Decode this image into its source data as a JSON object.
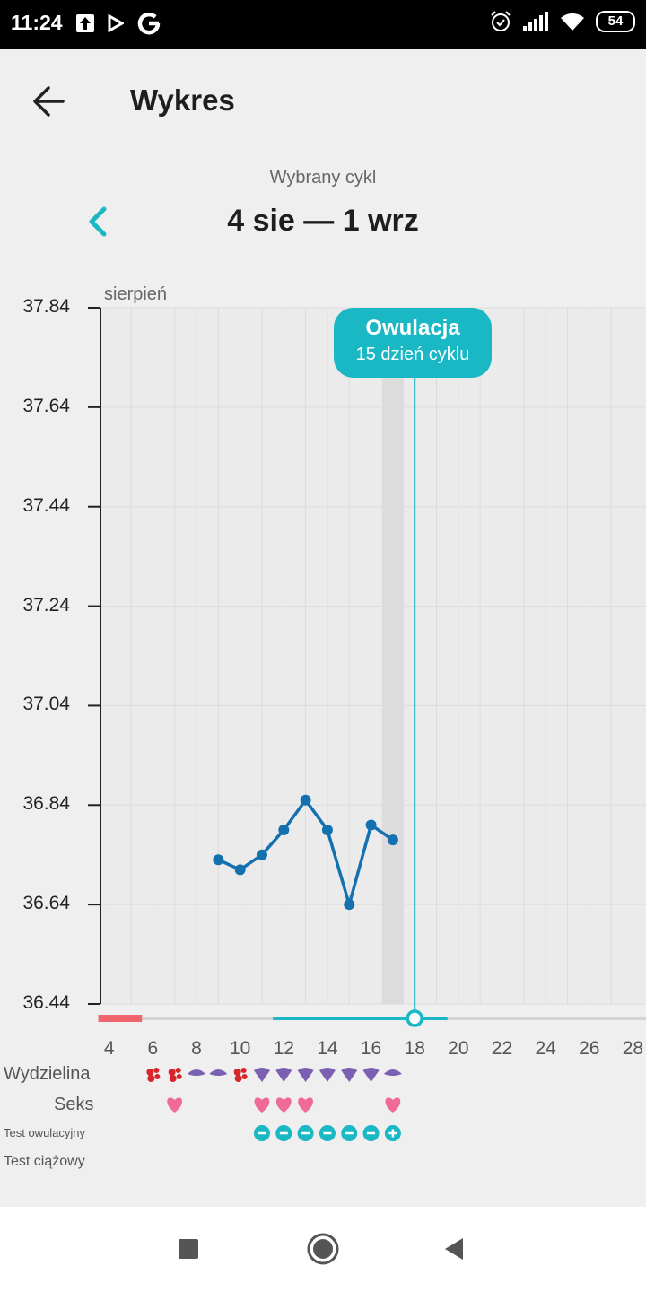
{
  "status_bar": {
    "time": "11:24",
    "battery": "54",
    "icons_left": [
      "upload-icon",
      "play-store-icon",
      "google-icon"
    ],
    "icons_right": [
      "alarm-icon",
      "signal-icon",
      "wifi-icon",
      "battery-icon"
    ]
  },
  "app_bar": {
    "title": "Wykres",
    "back_icon": "arrow-left-icon"
  },
  "cycle": {
    "caption": "Wybrany cykl",
    "range": "4 sie — 1 wrz",
    "prev_icon": "chevron-left-icon"
  },
  "colors": {
    "accent": "#1ab7c5",
    "line": "#1471b0",
    "period": "#f0656d",
    "discharge_purple": "#7a5fb2",
    "discharge_red": "#d8242b",
    "heart": "#ef6b96",
    "grid": "#dcdcdc"
  },
  "chart_data": {
    "type": "line",
    "month_label": "sierpień",
    "y_ticks": [
      "37.84",
      "37.64",
      "37.44",
      "37.24",
      "37.04",
      "36.84",
      "36.64",
      "36.44"
    ],
    "ylim": [
      36.44,
      37.84
    ],
    "x_ticks": [
      "4",
      "6",
      "8",
      "10",
      "12",
      "14",
      "16",
      "18",
      "20",
      "22",
      "24",
      "26",
      "28"
    ],
    "xlim": [
      3.6,
      28.6
    ],
    "series": [
      {
        "x": [
          9,
          10,
          11,
          12,
          13,
          14,
          15,
          16,
          17
        ],
        "y": [
          36.73,
          36.71,
          36.74,
          36.79,
          36.85,
          36.79,
          36.64,
          36.8,
          36.77
        ]
      }
    ],
    "highlight_day": 17,
    "ovulation": {
      "title": "Owulacja",
      "subtitle": "15 dzień cyklu",
      "day": 18
    },
    "period_days": [
      4,
      5
    ],
    "fertile_window": [
      12,
      19
    ],
    "rows": {
      "discharge": {
        "label": "Wydzielina",
        "days": [
          6,
          7,
          8,
          9,
          10,
          11,
          12,
          13,
          14,
          15,
          16,
          17
        ],
        "types": [
          "blood",
          "blood",
          "creamy",
          "creamy",
          "blood",
          "watery",
          "watery",
          "watery",
          "watery",
          "watery",
          "watery",
          "creamy"
        ]
      },
      "sex": {
        "label": "Seks",
        "days": [
          7,
          11,
          12,
          13,
          17
        ]
      },
      "ovulation_test": {
        "label": "Test owulacyjny",
        "days": [
          11,
          12,
          13,
          14,
          15,
          16,
          17
        ],
        "results": [
          "−",
          "−",
          "−",
          "−",
          "−",
          "−",
          "+"
        ]
      },
      "pregnancy_test": {
        "label": "Test ciążowy",
        "days": []
      }
    }
  },
  "nav_bar": {
    "icons": [
      "recents-icon",
      "home-icon",
      "back-nav-icon"
    ]
  }
}
